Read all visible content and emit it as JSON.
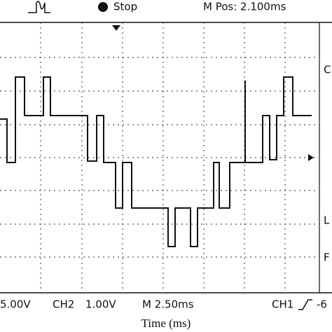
{
  "header": {
    "state": "Stop",
    "position": "M Pos: 2.100ms"
  },
  "footer": {
    "ch_scale_left": "5.00V",
    "ch2": "CH2",
    "ch2_scale": "1.00V",
    "timebase": "M 2.50ms",
    "trigger_source": "CH1",
    "trigger_level": "-6"
  },
  "side": {
    "top": "C",
    "middle": "L",
    "bottom": "F"
  },
  "x_label": "Time (ms)"
}
